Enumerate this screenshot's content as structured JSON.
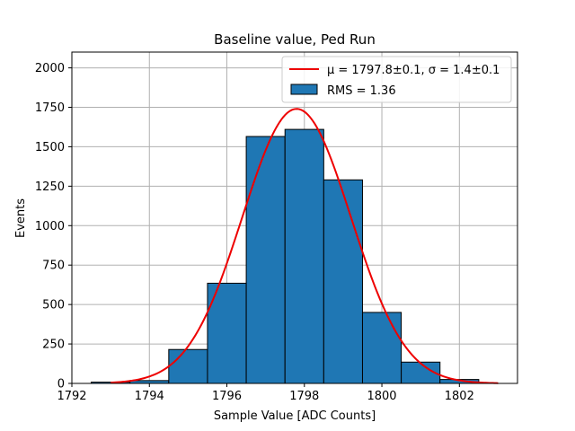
{
  "chart_data": {
    "type": "bar",
    "title": "Baseline value, Ped Run",
    "xlabel": "Sample Value [ADC Counts]",
    "ylabel": "Events",
    "xlim": [
      1792,
      1803.5
    ],
    "ylim": [
      0,
      2100
    ],
    "grid": true,
    "legend_position": "top-right",
    "xticks": [
      1792,
      1794,
      1796,
      1798,
      1800,
      1802
    ],
    "yticks": [
      0,
      250,
      500,
      750,
      1000,
      1250,
      1500,
      1750,
      2000
    ],
    "bin_edges": [
      1792.5,
      1793.5,
      1794.5,
      1795.5,
      1796.5,
      1797.5,
      1798.5,
      1799.5,
      1800.5,
      1801.5,
      1802.5
    ],
    "counts": [
      8,
      18,
      215,
      635,
      1565,
      1610,
      1290,
      450,
      135,
      25
    ],
    "fit": {
      "type": "gaussian",
      "mu": 1797.8,
      "sigma": 1.4,
      "amplitude": 1740,
      "x_range": [
        1793,
        1803
      ]
    },
    "legend": [
      {
        "label": "μ = 1797.8±0.1, σ = 1.4±0.1",
        "color": "#ee0000",
        "kind": "line"
      },
      {
        "label": "RMS = 1.36",
        "color": "#1f77b4",
        "kind": "patch"
      }
    ],
    "colors": {
      "bar_fill": "#1f77b4",
      "bar_edge": "#000000",
      "fit_line": "#ee0000",
      "grid": "#b0b0b0"
    }
  }
}
